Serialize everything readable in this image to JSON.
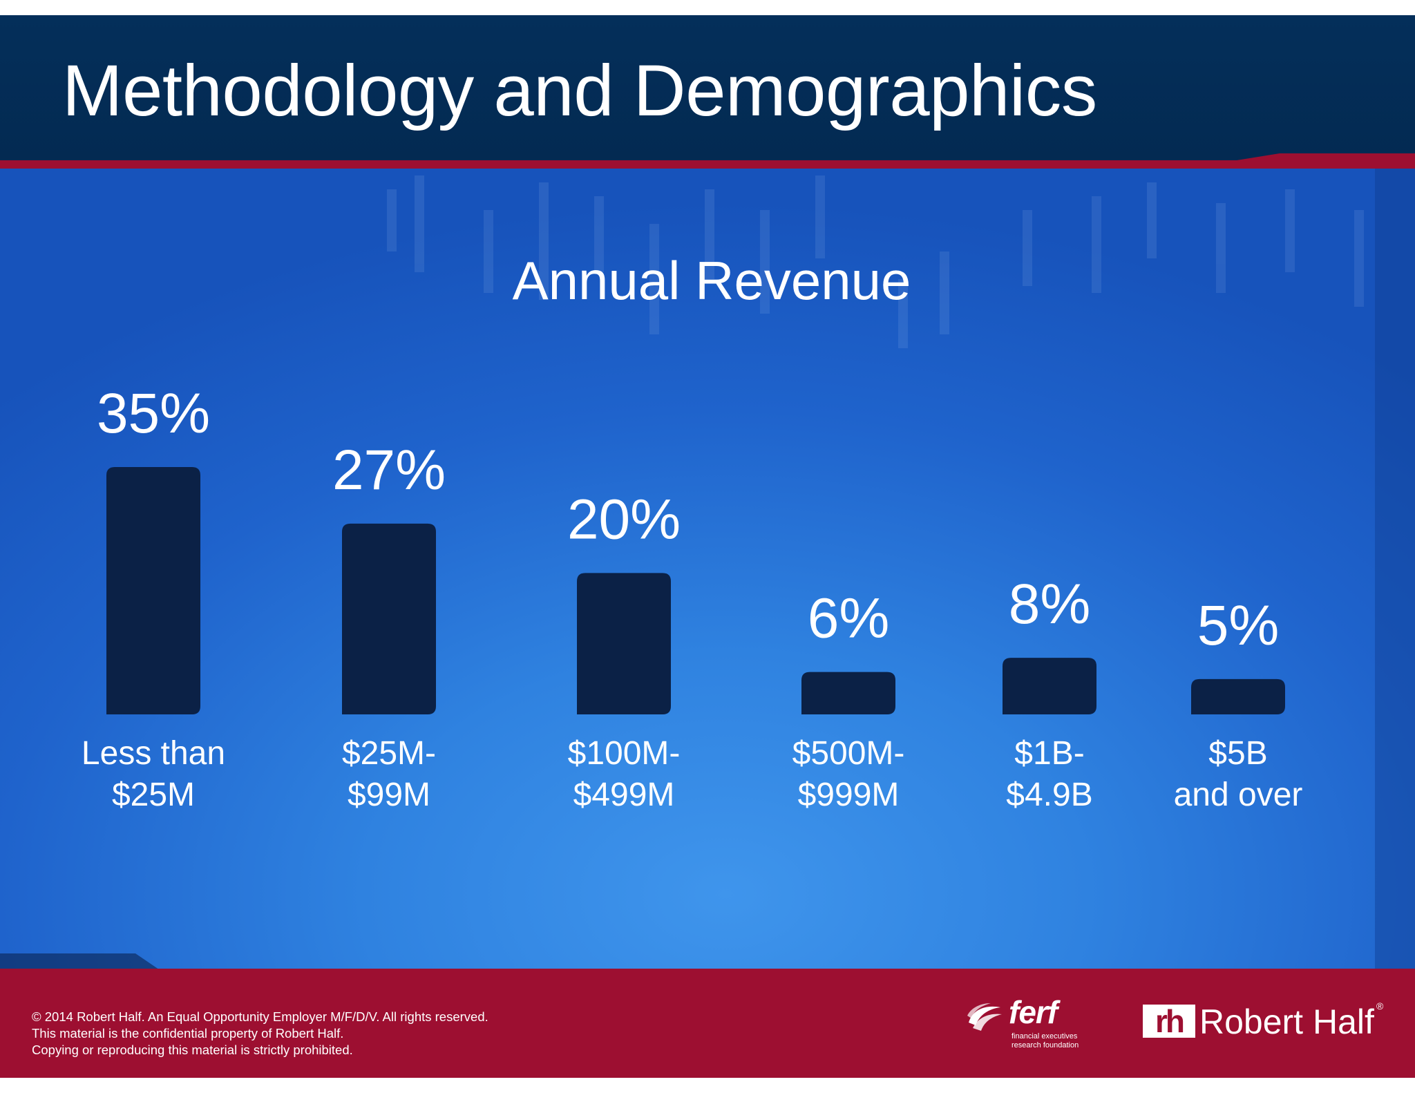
{
  "header": {
    "title": "Methodology and Demographics"
  },
  "chart_data": {
    "type": "bar",
    "title": "Annual Revenue",
    "xlabel": "",
    "ylabel": "",
    "unit": "%",
    "categories": [
      [
        "Less than",
        "$25M"
      ],
      [
        "$25M-",
        "$99M"
      ],
      [
        "$100M-",
        "$499M"
      ],
      [
        "$500M-",
        "$999M"
      ],
      [
        "$1B-",
        "$4.9B"
      ],
      [
        "$5B",
        "and over"
      ]
    ],
    "values": [
      35,
      27,
      20,
      6,
      8,
      5
    ],
    "value_labels": [
      "35%",
      "27%",
      "20%",
      "6%",
      "8%",
      "5%"
    ],
    "ylim": [
      0,
      35
    ],
    "grid": false,
    "legend": "none",
    "bar_color": "#0b2146"
  },
  "footer": {
    "copyright_lines": [
      "© 2014 Robert Half. An Equal Opportunity Employer M/F/D/V. All rights reserved.",
      "This material is the confidential property of Robert Half.",
      "Copying or reproducing this material is strictly prohibited."
    ],
    "ferf": {
      "wordmark": "ferf",
      "tagline_lines": [
        "financial executives",
        "research foundation"
      ]
    },
    "robert_half": {
      "box": "rh",
      "name": "Robert Half",
      "registered": "®"
    }
  },
  "colors": {
    "header": "#032b55",
    "stripe": "#9d0f31",
    "background": "#2f82e0",
    "footer": "#9d0f31",
    "bar": "#0b2146"
  }
}
